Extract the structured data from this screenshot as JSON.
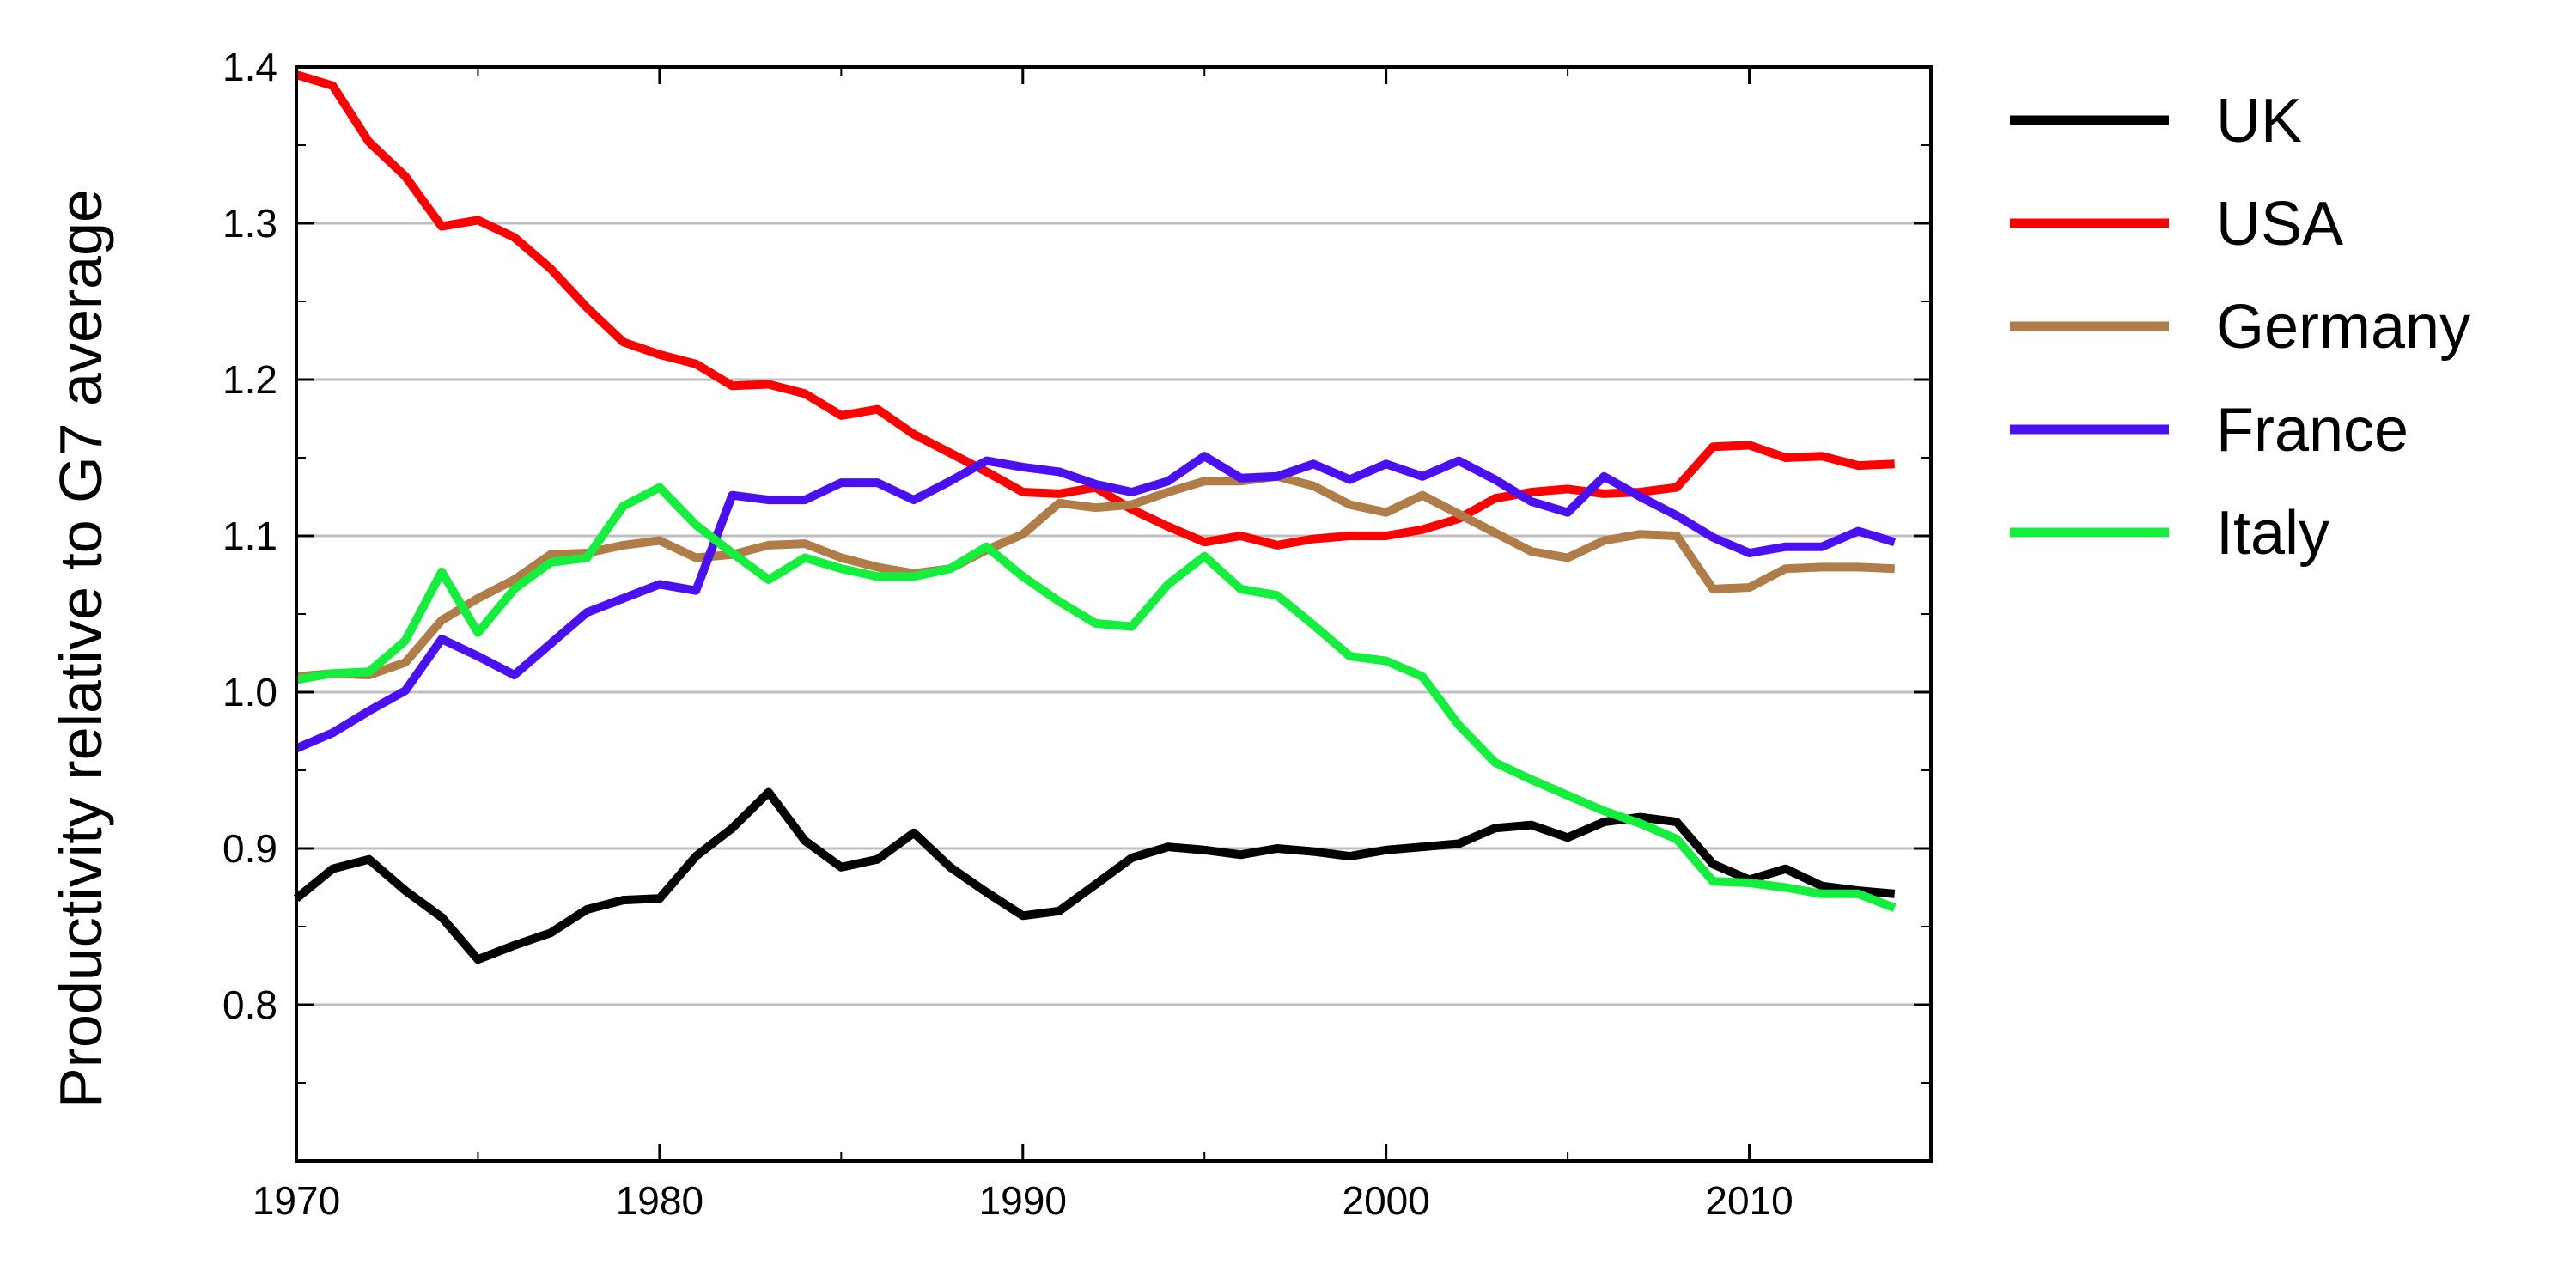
{
  "chart_data": {
    "type": "line",
    "title": "",
    "xlabel": "",
    "ylabel": "Productivity relative to G7 average",
    "xlim": [
      1970,
      2015
    ],
    "ylim": [
      0.7,
      1.4
    ],
    "x_ticks": [
      1970,
      1980,
      1990,
      2000,
      2010
    ],
    "y_ticks": [
      0.8,
      0.9,
      1.0,
      1.1,
      1.2,
      1.3,
      1.4
    ],
    "y_tick_labels": [
      "0.8",
      "0.9",
      "1.0",
      "1.1",
      "1.2",
      "1.3",
      "1.4"
    ],
    "x_tick_labels": [
      "1970",
      "1980",
      "1990",
      "2000",
      "2010"
    ],
    "grid": "horizontal",
    "legend_position": "right",
    "x": [
      1970,
      1971,
      1972,
      1973,
      1974,
      1975,
      1976,
      1977,
      1978,
      1979,
      1980,
      1981,
      1982,
      1983,
      1984,
      1985,
      1986,
      1987,
      1988,
      1989,
      1990,
      1991,
      1992,
      1993,
      1994,
      1995,
      1996,
      1997,
      1998,
      1999,
      2000,
      2001,
      2002,
      2003,
      2004,
      2005,
      2006,
      2007,
      2008,
      2009,
      2010,
      2011,
      2012,
      2013,
      2014
    ],
    "series": [
      {
        "name": "UK",
        "color": "#000000",
        "values": [
          0.868,
          0.887,
          0.893,
          0.873,
          0.856,
          0.829,
          0.838,
          0.846,
          0.861,
          0.867,
          0.868,
          0.895,
          0.913,
          0.936,
          0.905,
          0.888,
          0.893,
          0.91,
          0.888,
          0.872,
          0.857,
          0.86,
          0.877,
          0.894,
          0.901,
          0.899,
          0.896,
          0.9,
          0.898,
          0.895,
          0.899,
          0.901,
          0.903,
          0.913,
          0.915,
          0.907,
          0.917,
          0.92,
          0.917,
          0.89,
          0.88,
          0.887,
          0.876,
          0.873,
          0.871
        ]
      },
      {
        "name": "USA",
        "color": "#ff0000",
        "values": [
          1.395,
          1.388,
          1.352,
          1.33,
          1.298,
          1.302,
          1.291,
          1.271,
          1.246,
          1.224,
          1.216,
          1.21,
          1.196,
          1.197,
          1.191,
          1.177,
          1.181,
          1.165,
          1.153,
          1.141,
          1.128,
          1.127,
          1.131,
          1.117,
          1.106,
          1.096,
          1.1,
          1.094,
          1.098,
          1.1,
          1.1,
          1.104,
          1.111,
          1.124,
          1.128,
          1.13,
          1.127,
          1.128,
          1.131,
          1.157,
          1.158,
          1.15,
          1.151,
          1.145,
          1.146
        ]
      },
      {
        "name": "Germany",
        "color": "#b07c48",
        "values": [
          1.01,
          1.012,
          1.011,
          1.019,
          1.046,
          1.06,
          1.072,
          1.088,
          1.089,
          1.094,
          1.097,
          1.086,
          1.088,
          1.094,
          1.095,
          1.086,
          1.08,
          1.076,
          1.079,
          1.091,
          1.101,
          1.121,
          1.118,
          1.12,
          1.128,
          1.135,
          1.135,
          1.138,
          1.132,
          1.12,
          1.115,
          1.126,
          1.114,
          1.102,
          1.09,
          1.086,
          1.097,
          1.101,
          1.1,
          1.066,
          1.067,
          1.079,
          1.08,
          1.08,
          1.079
        ]
      },
      {
        "name": "France",
        "color": "#4b10f2",
        "values": [
          0.964,
          0.974,
          0.988,
          1.001,
          1.034,
          1.023,
          1.011,
          1.031,
          1.051,
          1.06,
          1.069,
          1.065,
          1.126,
          1.123,
          1.123,
          1.134,
          1.134,
          1.123,
          1.135,
          1.148,
          1.144,
          1.141,
          1.133,
          1.128,
          1.135,
          1.151,
          1.137,
          1.138,
          1.146,
          1.136,
          1.146,
          1.138,
          1.148,
          1.136,
          1.122,
          1.115,
          1.138,
          1.125,
          1.113,
          1.099,
          1.089,
          1.093,
          1.093,
          1.103,
          1.096
        ]
      },
      {
        "name": "Italy",
        "color": "#14ee3c",
        "values": [
          1.008,
          1.012,
          1.013,
          1.033,
          1.077,
          1.038,
          1.066,
          1.083,
          1.086,
          1.119,
          1.131,
          1.107,
          1.089,
          1.072,
          1.086,
          1.079,
          1.074,
          1.074,
          1.079,
          1.093,
          1.074,
          1.058,
          1.044,
          1.042,
          1.069,
          1.087,
          1.066,
          1.062,
          1.043,
          1.023,
          1.02,
          1.01,
          0.979,
          0.955,
          0.944,
          0.934,
          0.924,
          0.916,
          0.906,
          0.879,
          0.878,
          0.875,
          0.871,
          0.871,
          0.862
        ]
      }
    ]
  }
}
